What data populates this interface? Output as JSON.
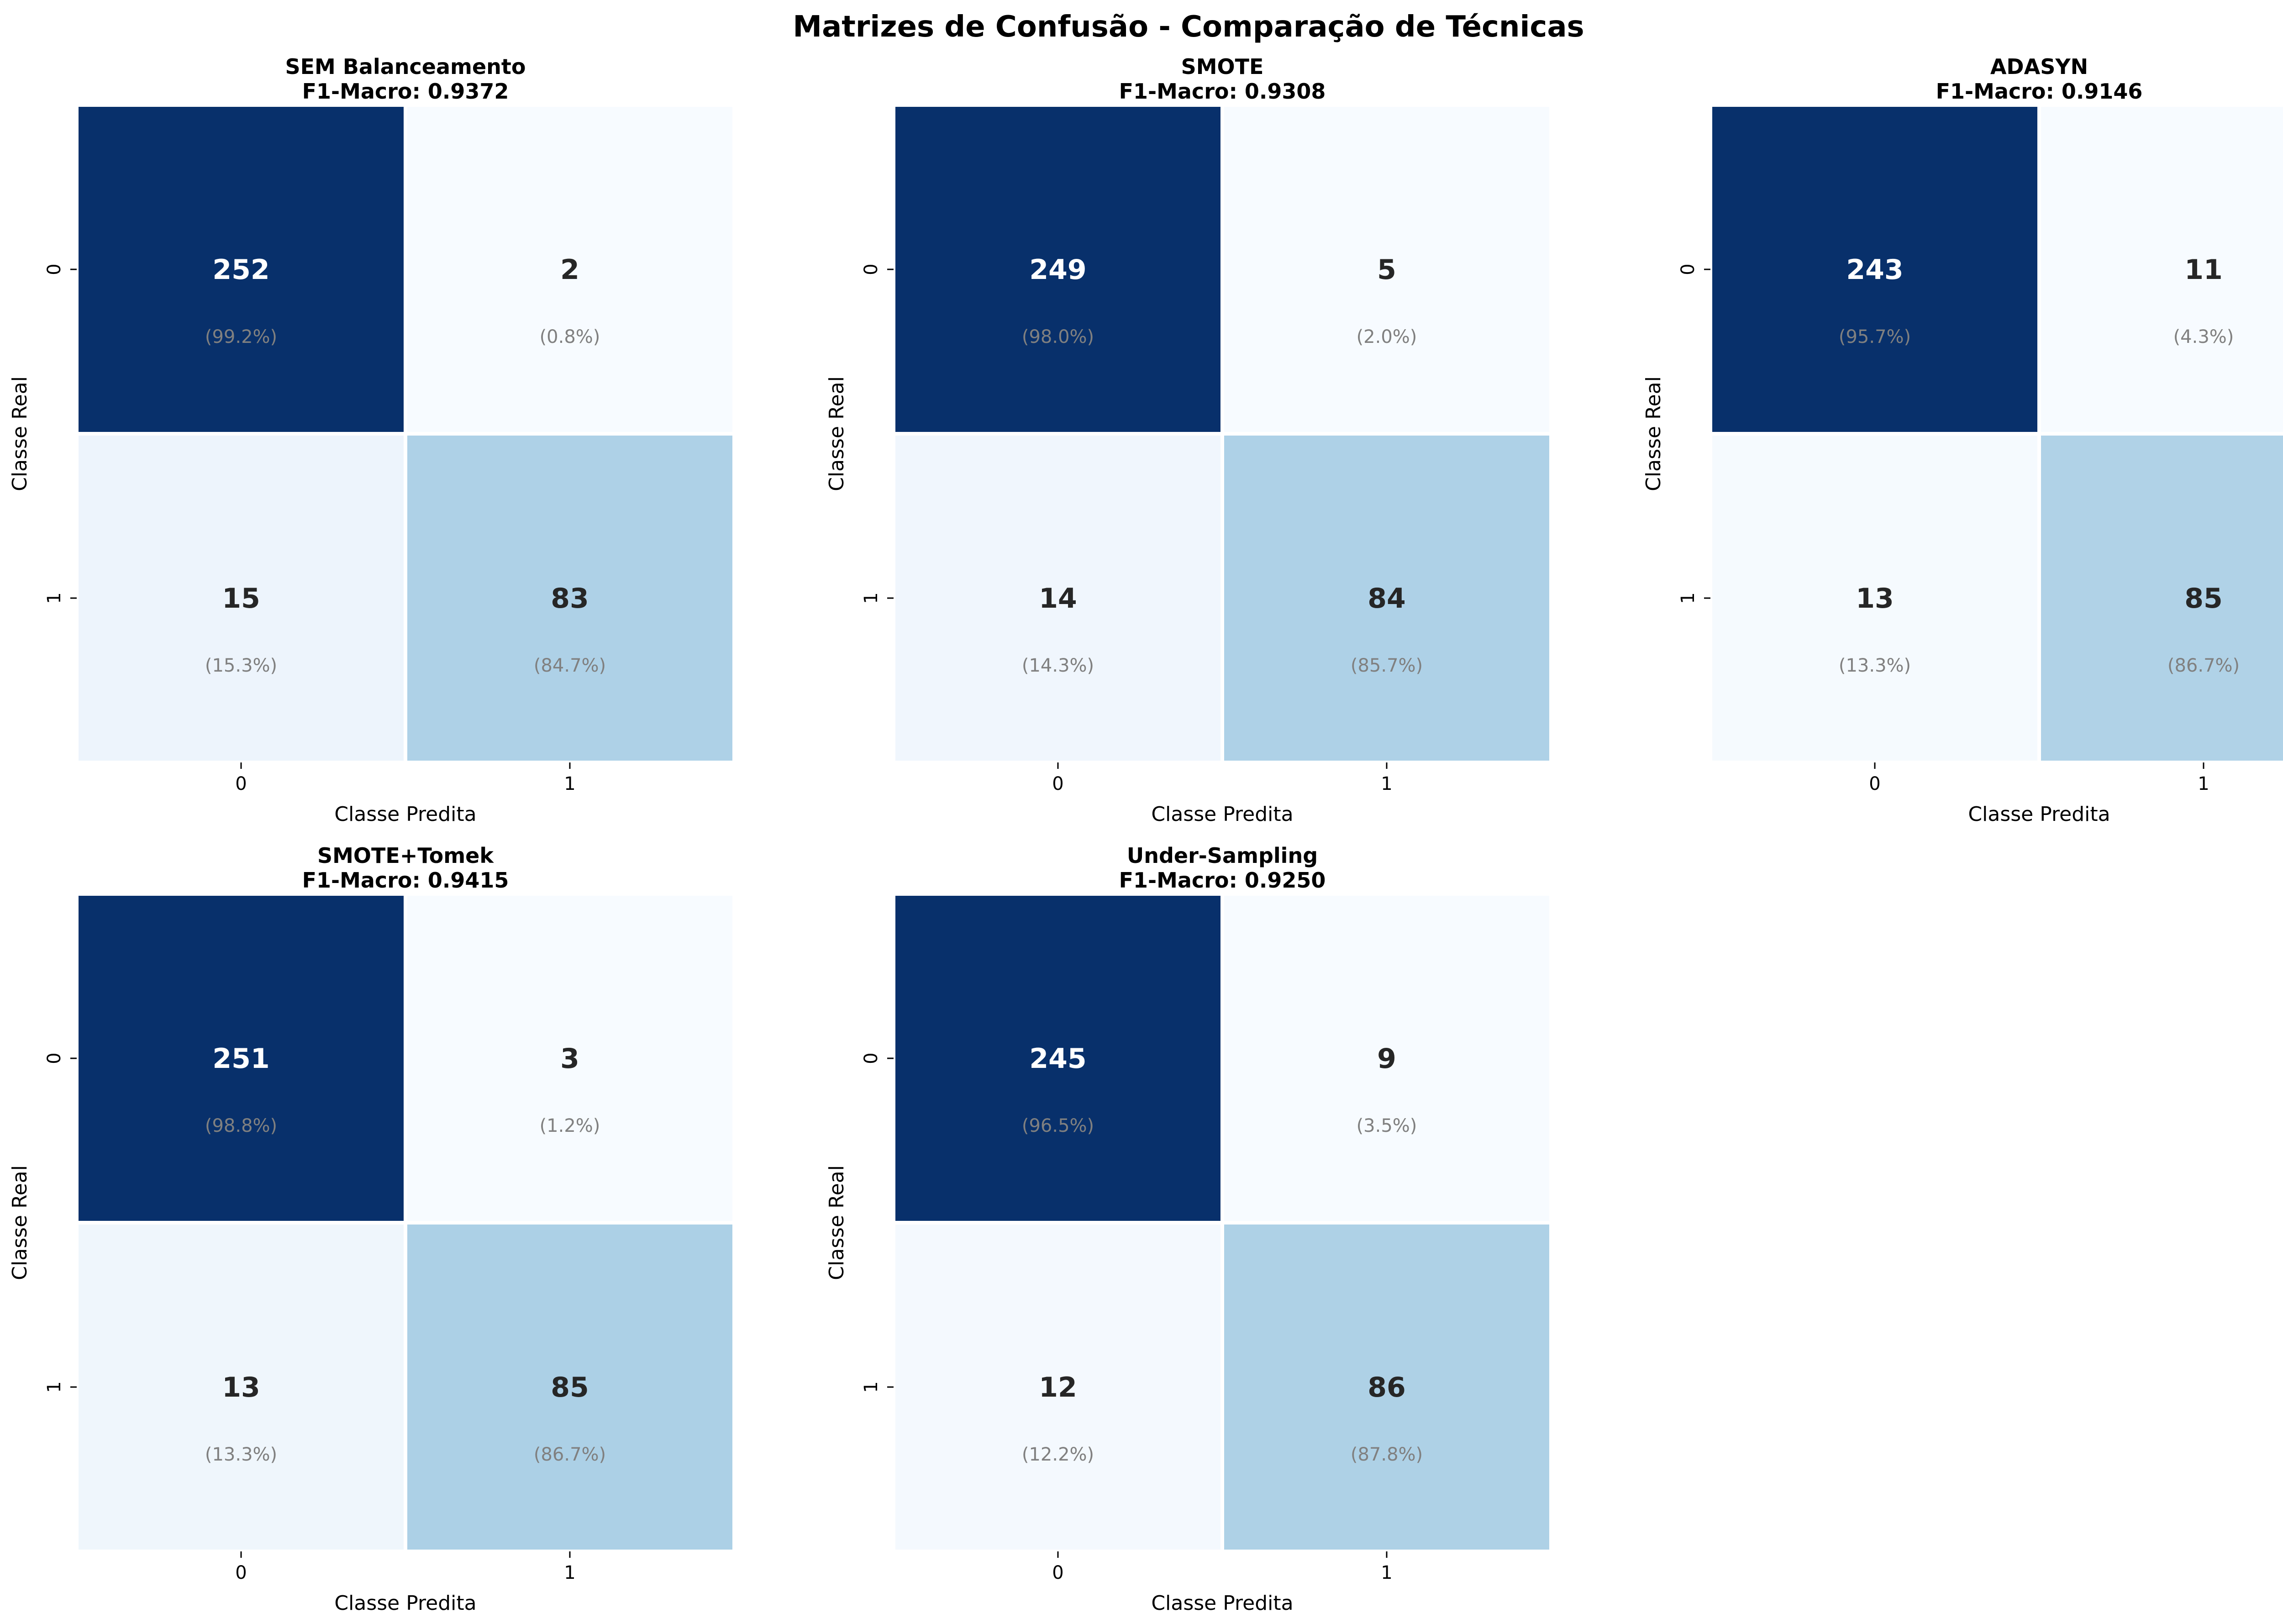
{
  "figure": {
    "title": "Matrizes de Confusão - Comparação de Técnicas"
  },
  "chart_data": [
    {
      "type": "heatmap",
      "title": "SEM Balanceamento",
      "subtitle": "F1-Macro: 0.9372",
      "xlabel": "Classe Predita",
      "ylabel": "Classe Real",
      "x_ticks": [
        "0",
        "1"
      ],
      "y_ticks": [
        "0",
        "1"
      ],
      "matrix": [
        [
          252,
          2
        ],
        [
          15,
          83
        ]
      ],
      "percent_labels": [
        [
          "(99.2%)",
          "(0.8%)"
        ],
        [
          "(15.3%)",
          "(84.7%)"
        ]
      ]
    },
    {
      "type": "heatmap",
      "title": "SMOTE",
      "subtitle": "F1-Macro: 0.9308",
      "xlabel": "Classe Predita",
      "ylabel": "Classe Real",
      "x_ticks": [
        "0",
        "1"
      ],
      "y_ticks": [
        "0",
        "1"
      ],
      "matrix": [
        [
          249,
          5
        ],
        [
          14,
          84
        ]
      ],
      "percent_labels": [
        [
          "(98.0%)",
          "(2.0%)"
        ],
        [
          "(14.3%)",
          "(85.7%)"
        ]
      ]
    },
    {
      "type": "heatmap",
      "title": "ADASYN",
      "subtitle": "F1-Macro: 0.9146",
      "xlabel": "Classe Predita",
      "ylabel": "Classe Real",
      "x_ticks": [
        "0",
        "1"
      ],
      "y_ticks": [
        "0",
        "1"
      ],
      "matrix": [
        [
          243,
          11
        ],
        [
          13,
          85
        ]
      ],
      "percent_labels": [
        [
          "(95.7%)",
          "(4.3%)"
        ],
        [
          "(13.3%)",
          "(86.7%)"
        ]
      ]
    },
    {
      "type": "heatmap",
      "title": "SMOTE+Tomek",
      "subtitle": "F1-Macro: 0.9415",
      "xlabel": "Classe Predita",
      "ylabel": "Classe Real",
      "x_ticks": [
        "0",
        "1"
      ],
      "y_ticks": [
        "0",
        "1"
      ],
      "matrix": [
        [
          251,
          3
        ],
        [
          13,
          85
        ]
      ],
      "percent_labels": [
        [
          "(98.8%)",
          "(1.2%)"
        ],
        [
          "(13.3%)",
          "(86.7%)"
        ]
      ]
    },
    {
      "type": "heatmap",
      "title": "Under-Sampling",
      "subtitle": "F1-Macro: 0.9250",
      "xlabel": "Classe Predita",
      "ylabel": "Classe Real",
      "x_ticks": [
        "0",
        "1"
      ],
      "y_ticks": [
        "0",
        "1"
      ],
      "matrix": [
        [
          245,
          9
        ],
        [
          12,
          86
        ]
      ],
      "percent_labels": [
        [
          "(96.5%)",
          "(3.5%)"
        ],
        [
          "(12.2%)",
          "(87.8%)"
        ]
      ]
    }
  ],
  "colors": {
    "colormap": "Blues",
    "text_on_dark": "#ffffff",
    "text_on_light": "#262626",
    "percent_text": "#808080",
    "cell_border": "#ffffff"
  }
}
